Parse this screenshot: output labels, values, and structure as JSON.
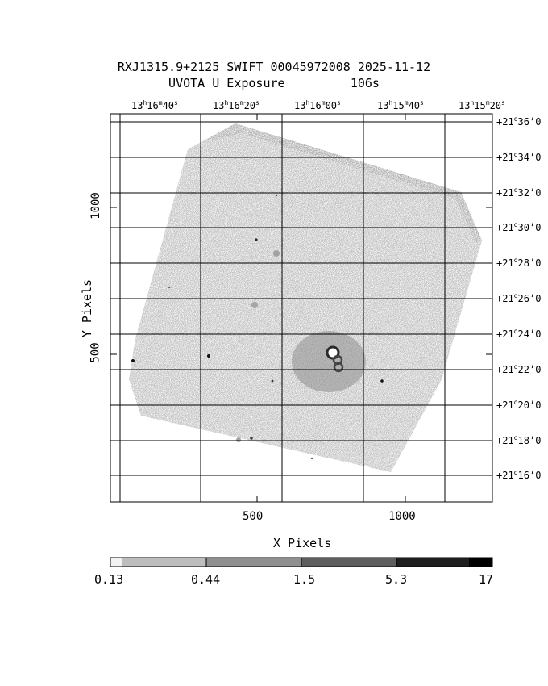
{
  "header": {
    "title_line1": "RXJ1315.9+2125 SWIFT 00045972008 2025-11-12",
    "title_line2": "UVOTA U Exposure         106s"
  },
  "ra_axis": {
    "labels": [
      {
        "h": "13",
        "hs": "h",
        "m": "16",
        "ms": "m",
        "s": "40",
        "ss": "s"
      },
      {
        "h": "13",
        "hs": "h",
        "m": "16",
        "ms": "m",
        "s": "20",
        "ss": "s"
      },
      {
        "h": "13",
        "hs": "h",
        "m": "16",
        "ms": "m",
        "s": "00",
        "ss": "s"
      },
      {
        "h": "13",
        "hs": "h",
        "m": "15",
        "ms": "m",
        "s": "40",
        "ss": "s"
      },
      {
        "h": "13",
        "hs": "h",
        "m": "15",
        "ms": "m",
        "s": "20",
        "ss": "s"
      }
    ]
  },
  "dec_axis": {
    "labels": [
      {
        "d": "+21",
        "m": "36",
        "s": "0"
      },
      {
        "d": "+21",
        "m": "34",
        "s": "0"
      },
      {
        "d": "+21",
        "m": "32",
        "s": "0"
      },
      {
        "d": "+21",
        "m": "30",
        "s": "0"
      },
      {
        "d": "+21",
        "m": "28",
        "s": "0"
      },
      {
        "d": "+21",
        "m": "26",
        "s": "0"
      },
      {
        "d": "+21",
        "m": "24",
        "s": "0"
      },
      {
        "d": "+21",
        "m": "22",
        "s": "0"
      },
      {
        "d": "+21",
        "m": "20",
        "s": "0"
      },
      {
        "d": "+21",
        "m": "18",
        "s": "0"
      },
      {
        "d": "+21",
        "m": "16",
        "s": "0"
      }
    ]
  },
  "x_axis": {
    "label": "X Pixels",
    "ticks": [
      "500",
      "1000"
    ]
  },
  "y_axis": {
    "label": "Y Pixels",
    "ticks": [
      "500",
      "1000"
    ]
  },
  "colorbar": {
    "labels": [
      "0.13",
      "0.44",
      "1.5",
      "5.3",
      "17"
    ],
    "colors": [
      "#dcdcdc",
      "#b4b4b4",
      "#8c8c8c",
      "#5a5a5a",
      "#000000"
    ]
  },
  "image": {
    "background": "#ffffff",
    "field_color": "#b9b9b9",
    "grid_color": "#000000"
  }
}
